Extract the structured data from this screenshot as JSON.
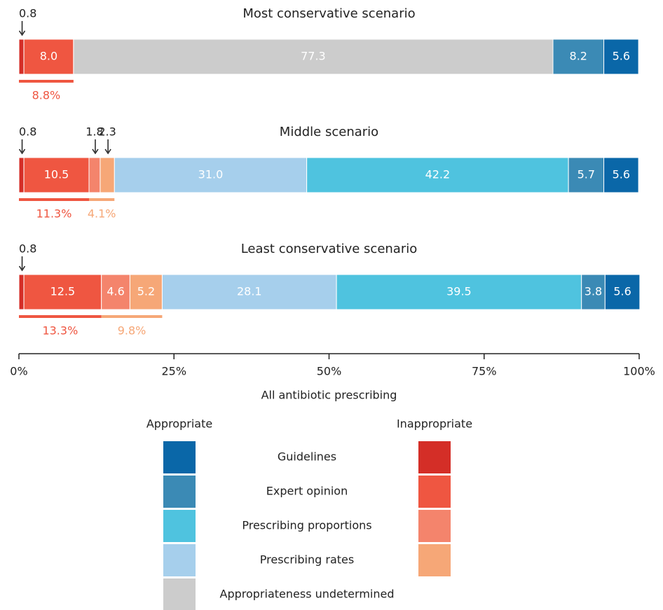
{
  "chart_data": {
    "type": "stacked-hbar",
    "xlabel": "All antibiotic prescribing",
    "xlim": [
      0,
      100
    ],
    "xticks": [
      {
        "value": 0,
        "label": "0%"
      },
      {
        "value": 25,
        "label": "25%"
      },
      {
        "value": 50,
        "label": "50%"
      },
      {
        "value": 75,
        "label": "75%"
      },
      {
        "value": 100,
        "label": "100%"
      }
    ],
    "rows": [
      {
        "title": "Most conservative scenario",
        "values": [
          0.8,
          8.0,
          77.3,
          8.2,
          5.6
        ],
        "value_labels": [
          "0.8",
          "8.0",
          "77.3",
          "8.2",
          "5.6"
        ],
        "colors": [
          "#d42e27",
          "#ef5641",
          "#cccccc",
          "#3b8ab5",
          "#0a67a8"
        ],
        "summaries": [
          {
            "value": 8.8,
            "label": "8.8%",
            "color": "#ef5641"
          }
        ]
      },
      {
        "title": "Middle scenario",
        "values": [
          0.8,
          10.5,
          1.8,
          2.3,
          31.0,
          42.2,
          5.7,
          5.6
        ],
        "value_labels": [
          "0.8",
          "10.5",
          "1.8",
          "2.3",
          "31.0",
          "42.2",
          "5.7",
          "5.6"
        ],
        "colors": [
          "#d42e27",
          "#ef5641",
          "#f4846c",
          "#f6a777",
          "#a6cfec",
          "#4fc3df",
          "#3b8ab5",
          "#0a67a8"
        ],
        "summaries": [
          {
            "value": 11.3,
            "label": "11.3%",
            "color": "#ef5641"
          },
          {
            "value": 4.1,
            "label": "4.1%",
            "color": "#f6a777"
          }
        ]
      },
      {
        "title": "Least conservative scenario",
        "values": [
          0.8,
          12.5,
          4.6,
          5.2,
          28.1,
          39.5,
          3.8,
          5.6
        ],
        "value_labels": [
          "0.8",
          "12.5",
          "4.6",
          "5.2",
          "28.1",
          "39.5",
          "3.8",
          "5.6"
        ],
        "colors": [
          "#d42e27",
          "#ef5641",
          "#f4846c",
          "#f6a777",
          "#a6cfec",
          "#4fc3df",
          "#3b8ab5",
          "#0a67a8"
        ],
        "summaries": [
          {
            "value": 13.3,
            "label": "13.3%",
            "color": "#ef5641"
          },
          {
            "value": 9.8,
            "label": "9.8%",
            "color": "#f6a777"
          }
        ]
      }
    ],
    "legend": {
      "titles": [
        "Appropriate",
        "Inappropriate"
      ],
      "entries": [
        {
          "name": "Guidelines",
          "colors": [
            "#0a67a8",
            "#d42e27"
          ]
        },
        {
          "name": "Expert opinion",
          "colors": [
            "#3b8ab5",
            "#ef5641"
          ]
        },
        {
          "name": "Prescribing proportions",
          "colors": [
            "#4fc3df",
            "#f4846c"
          ]
        },
        {
          "name": "Prescribing rates",
          "colors": [
            "#a6cfec",
            "#f6a777"
          ]
        },
        {
          "name": "Appropriateness undetermined",
          "colors": [
            "#cccccc"
          ]
        }
      ]
    }
  }
}
